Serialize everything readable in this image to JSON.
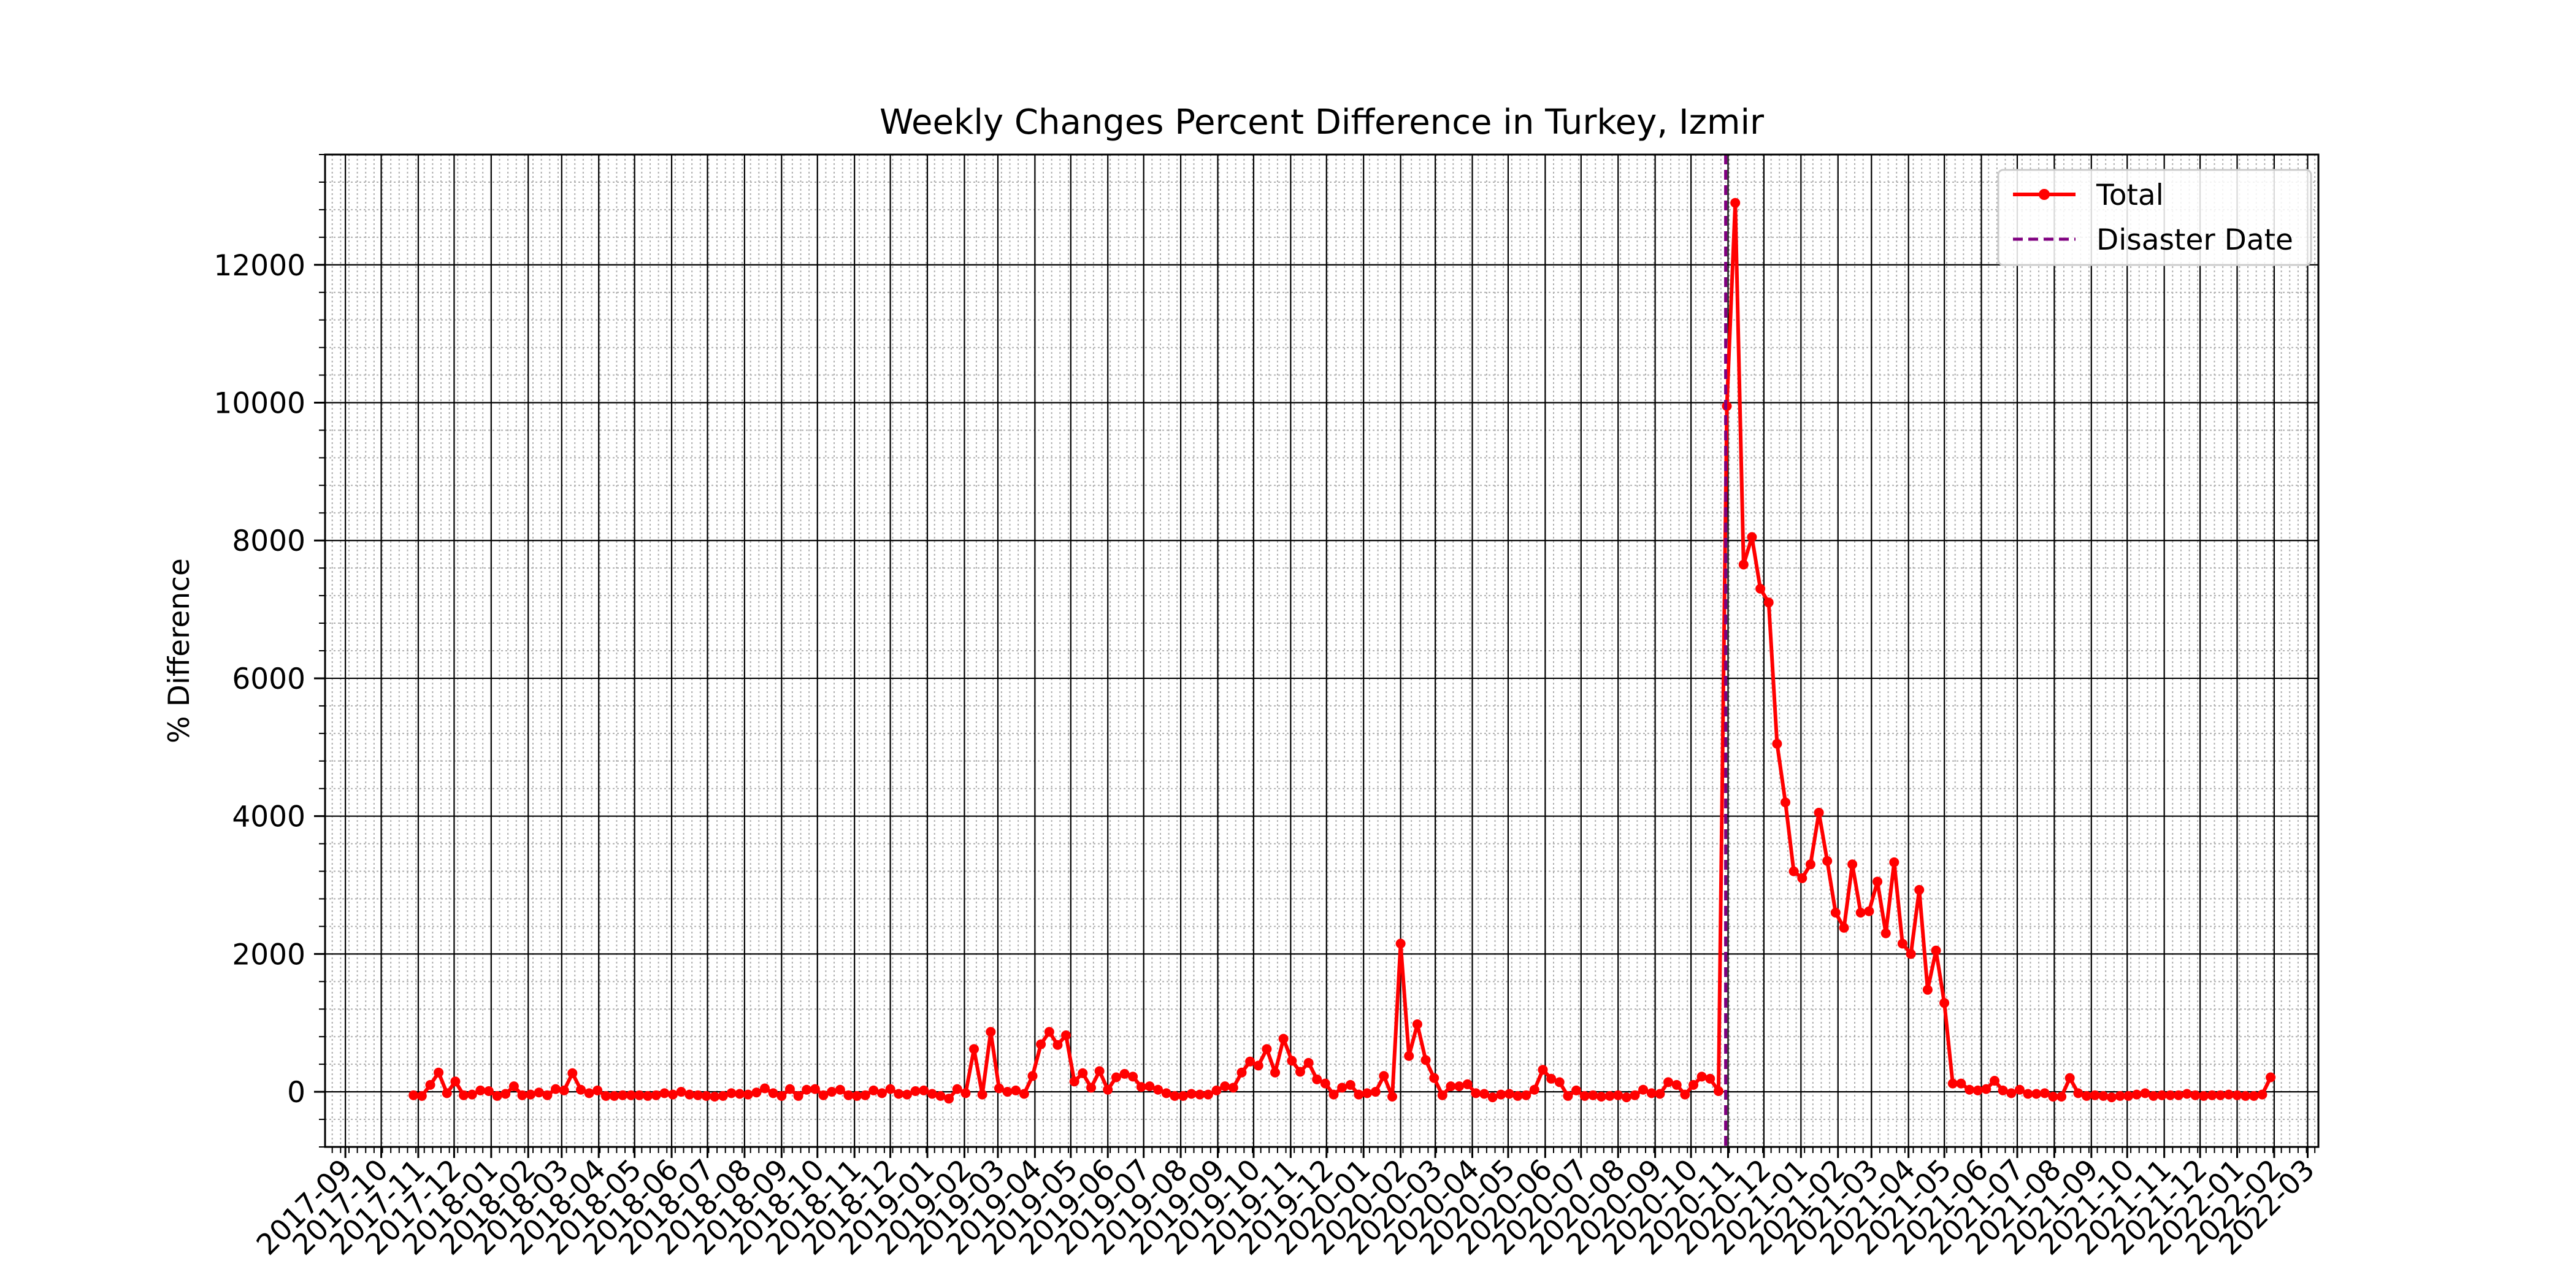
{
  "chart_data": {
    "type": "line",
    "title": "Weekly Changes Percent Difference in Turkey, Izmir",
    "xlabel": "",
    "ylabel": "% Difference",
    "grid": true,
    "legend_position": "upper-right",
    "xlim": [
      "2017-08-15",
      "2022-03-10"
    ],
    "ylim": [
      -800,
      13600
    ],
    "y_ticks": [
      0,
      2000,
      4000,
      6000,
      8000,
      10000,
      12000
    ],
    "x_tick_labels": [
      "2017-09",
      "2017-10",
      "2017-11",
      "2017-12",
      "2018-01",
      "2018-02",
      "2018-03",
      "2018-04",
      "2018-05",
      "2018-06",
      "2018-07",
      "2018-08",
      "2018-09",
      "2018-10",
      "2018-11",
      "2018-12",
      "2019-01",
      "2019-02",
      "2019-03",
      "2019-04",
      "2019-05",
      "2019-06",
      "2019-07",
      "2019-08",
      "2019-09",
      "2019-10",
      "2019-11",
      "2019-12",
      "2020-01",
      "2020-02",
      "2020-03",
      "2020-04",
      "2020-05",
      "2020-06",
      "2020-07",
      "2020-08",
      "2020-09",
      "2020-10",
      "2020-11",
      "2020-12",
      "2021-01",
      "2021-02",
      "2021-03",
      "2021-04",
      "2021-05",
      "2021-06",
      "2021-07",
      "2021-08",
      "2021-09",
      "2021-10",
      "2021-11",
      "2021-12",
      "2022-01",
      "2022-02",
      "2022-03"
    ],
    "series": [
      {
        "name": "Total",
        "color": "#ff0000",
        "start_date": "2017-10-28",
        "interval_days": 7,
        "values": [
          -50,
          -60,
          100,
          280,
          -20,
          150,
          -50,
          -40,
          20,
          10,
          -60,
          -30,
          80,
          -50,
          -40,
          -10,
          -50,
          40,
          20,
          270,
          30,
          -20,
          20,
          -60,
          -60,
          -50,
          -50,
          -50,
          -60,
          -50,
          -20,
          -40,
          0,
          -40,
          -50,
          -60,
          -70,
          -60,
          -20,
          -30,
          -40,
          -10,
          50,
          -20,
          -60,
          40,
          -60,
          30,
          40,
          -50,
          0,
          30,
          -50,
          -60,
          -50,
          20,
          -20,
          40,
          -30,
          -40,
          10,
          20,
          -30,
          -60,
          -100,
          40,
          -20,
          620,
          -40,
          870,
          50,
          0,
          20,
          -30,
          230,
          690,
          870,
          680,
          820,
          150,
          270,
          60,
          300,
          30,
          210,
          260,
          220,
          70,
          80,
          30,
          -20,
          -60,
          -60,
          -30,
          -40,
          -40,
          20,
          80,
          60,
          280,
          440,
          380,
          620,
          280,
          770,
          450,
          290,
          420,
          180,
          120,
          -40,
          60,
          100,
          -40,
          -20,
          0,
          230,
          -70,
          2150,
          520,
          980,
          460,
          200,
          -50,
          80,
          80,
          110,
          -20,
          -30,
          -80,
          -40,
          -30,
          -60,
          -50,
          30,
          320,
          190,
          140,
          -60,
          20,
          -60,
          -50,
          -70,
          -60,
          -50,
          -80,
          -50,
          30,
          -20,
          -30,
          140,
          100,
          -40,
          100,
          220,
          190,
          10,
          9950,
          12900,
          7650,
          8050,
          7300,
          7100,
          5050,
          4200,
          3200,
          3100,
          3300,
          4050,
          3350,
          2600,
          2380,
          3300,
          2600,
          2620,
          3050,
          2300,
          3330,
          2150,
          2000,
          2930,
          1480,
          2050,
          1290,
          120,
          120,
          30,
          20,
          40,
          160,
          20,
          -20,
          30,
          -30,
          -30,
          -20,
          -70,
          -70,
          200,
          -20,
          -60,
          -50,
          -60,
          -80,
          -60,
          -60,
          -40,
          -20,
          -60,
          -50,
          -50,
          -50,
          -30,
          -50,
          -60,
          -50,
          -50,
          -40,
          -50,
          -60,
          -60,
          -40,
          210
        ]
      },
      {
        "name": "Disaster Date",
        "color": "#800080",
        "date": "2020-10-30"
      }
    ]
  }
}
